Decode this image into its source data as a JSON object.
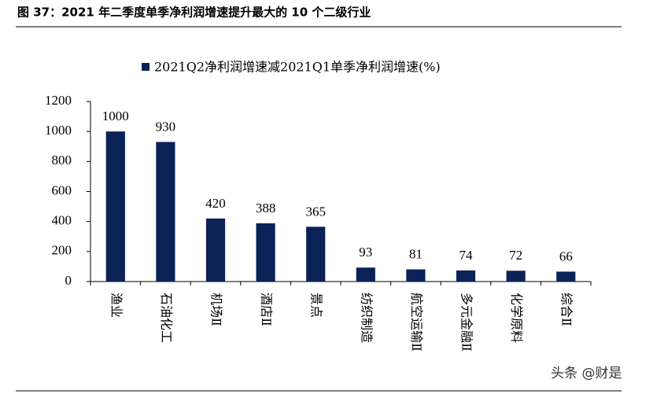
{
  "chart_data": {
    "type": "bar",
    "title": "图 37：2021 年二季度单季净利润增速提升最大的 10 个二级行业",
    "categories": [
      "渔业",
      "石油化工",
      "机场Ⅱ",
      "酒店Ⅱ",
      "景点",
      "纺织制造",
      "航空运输Ⅱ",
      "多元金融Ⅱ",
      "化学原料",
      "综合Ⅱ"
    ],
    "series": [
      {
        "name": "2021Q2净利润增速减2021Q1单季净利润增速(%)",
        "color": "#0b2257",
        "values": [
          1000,
          930,
          420,
          388,
          365,
          93,
          81,
          74,
          72,
          66
        ]
      }
    ],
    "ylim": [
      0,
      1200
    ],
    "yticks": [
      0,
      200,
      400,
      600,
      800,
      1000,
      1200
    ],
    "grid": false,
    "legend": "top",
    "watermark": "头条 @财是"
  }
}
